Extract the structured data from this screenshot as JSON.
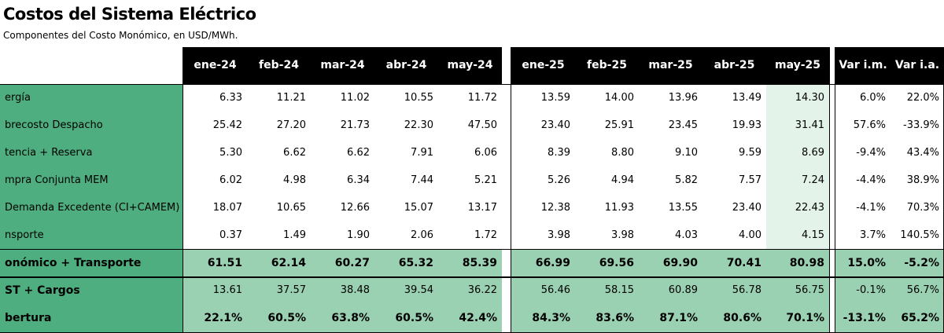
{
  "title": "Costos del Sistema Eléctrico",
  "subtitle": "Componentes del Costo Monómico, en USD/MWh.",
  "chart_data": {
    "type": "table",
    "columns": [
      "ene-24",
      "feb-24",
      "mar-24",
      "abr-24",
      "may-24",
      "ene-25",
      "feb-25",
      "mar-25",
      "abr-25",
      "may-25",
      "Var i.m.",
      "Var i.a."
    ],
    "rows": [
      {
        "label": "ergía",
        "values": [
          "6.33",
          "11.21",
          "11.02",
          "10.55",
          "11.72",
          "13.59",
          "14.00",
          "13.96",
          "13.49",
          "14.30",
          "6.0%",
          "22.0%"
        ]
      },
      {
        "label": "brecosto Despacho",
        "values": [
          "25.42",
          "27.20",
          "21.73",
          "22.30",
          "47.50",
          "23.40",
          "25.91",
          "23.45",
          "19.93",
          "31.41",
          "57.6%",
          "-33.9%"
        ]
      },
      {
        "label": "tencia + Reserva",
        "values": [
          "5.30",
          "6.62",
          "6.62",
          "7.91",
          "6.06",
          "8.39",
          "8.80",
          "9.10",
          "9.59",
          "8.69",
          "-9.4%",
          "43.4%"
        ]
      },
      {
        "label": "mpra Conjunta MEM",
        "values": [
          "6.02",
          "4.98",
          "6.34",
          "7.44",
          "5.21",
          "5.26",
          "4.94",
          "5.82",
          "7.57",
          "7.24",
          "-4.4%",
          "38.9%"
        ]
      },
      {
        "label": "Demanda Excedente (CI+CAMEM)",
        "values": [
          "18.07",
          "10.65",
          "12.66",
          "15.07",
          "13.17",
          "12.38",
          "11.93",
          "13.55",
          "23.40",
          "22.43",
          "-4.1%",
          "70.3%"
        ]
      },
      {
        "label": "nsporte",
        "values": [
          "0.37",
          "1.49",
          "1.90",
          "2.06",
          "1.72",
          "3.98",
          "3.98",
          "4.03",
          "4.00",
          "4.15",
          "3.7%",
          "140.5%"
        ]
      },
      {
        "label": "onómico + Transporte",
        "values": [
          "61.51",
          "62.14",
          "60.27",
          "65.32",
          "85.39",
          "66.99",
          "69.56",
          "69.90",
          "70.41",
          "80.98",
          "15.0%",
          "-5.2%"
        ]
      },
      {
        "label": "ST + Cargos",
        "values": [
          "13.61",
          "37.57",
          "38.48",
          "39.54",
          "36.22",
          "56.46",
          "58.15",
          "60.89",
          "56.78",
          "56.75",
          "-0.1%",
          "56.7%"
        ]
      },
      {
        "label": "bertura",
        "values": [
          "22.1%",
          "60.5%",
          "63.8%",
          "60.5%",
          "42.4%",
          "84.3%",
          "83.6%",
          "87.1%",
          "80.6%",
          "70.1%",
          "-13.1%",
          "65.2%"
        ]
      }
    ]
  }
}
